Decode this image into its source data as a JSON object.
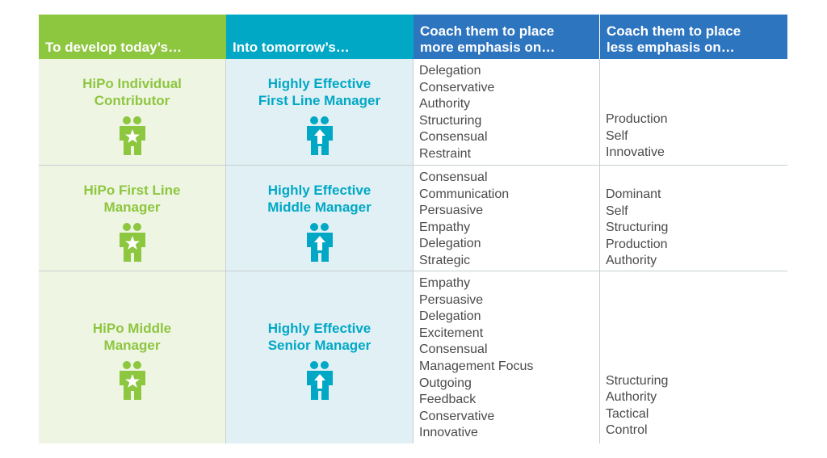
{
  "header": {
    "col1": "To develop today’s…",
    "col2": "Into tomorrow’s…",
    "col3_line1": "Coach them to place",
    "col3_line2": "more emphasis on…",
    "col4_line1": "Coach them to place",
    "col4_line2": "less emphasis on…"
  },
  "colors": {
    "green": "#8dc63f",
    "teal": "#00a8c6",
    "blue": "#2e75c0",
    "green_bg": "#eff5e3",
    "teal_bg": "#e1f0f4"
  },
  "icons": {
    "today": "people-star-icon",
    "tomorrow": "people-arrow-up-icon"
  },
  "rows": [
    {
      "today_line1": "HiPo Individual",
      "today_line2": "Contributor",
      "tomorrow_line1": "Highly Effective",
      "tomorrow_line2": "First Line Manager",
      "more": [
        "Delegation",
        "Conservative",
        "Authority",
        "Structuring",
        "Consensual",
        "Restraint"
      ],
      "less": [
        "Production",
        "Self",
        "Innovative"
      ]
    },
    {
      "today_line1": "HiPo First Line",
      "today_line2": "Manager",
      "tomorrow_line1": "Highly Effective",
      "tomorrow_line2": "Middle Manager",
      "more": [
        "Consensual",
        "Communication",
        "Persuasive",
        "Empathy",
        "Delegation",
        "Strategic"
      ],
      "less": [
        "Dominant",
        "Self",
        "Structuring",
        "Production",
        "Authority"
      ]
    },
    {
      "today_line1": "HiPo Middle",
      "today_line2": "Manager",
      "tomorrow_line1": "Highly Effective",
      "tomorrow_line2": "Senior Manager",
      "more": [
        "Empathy",
        "Persuasive",
        "Delegation",
        "Excitement",
        "Consensual",
        "Management Focus",
        "Outgoing",
        "Feedback",
        "Conservative",
        "Innovative"
      ],
      "less": [
        "Structuring",
        "Authority",
        "Tactical",
        "Control"
      ]
    }
  ]
}
